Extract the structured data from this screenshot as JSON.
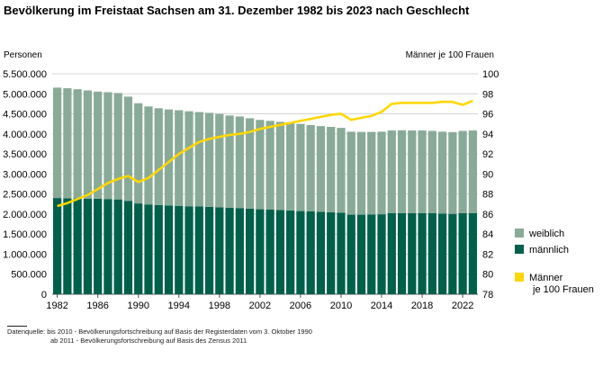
{
  "chart_data": {
    "type": "bar",
    "title": "Bevölkerung im Freistaat Sachsen am 31. Dezember 1982 bis 2023 nach Geschlecht",
    "ylabel_left": "Personen",
    "ylabel_right": "Männer je 100 Frauen",
    "ylim_left": [
      0,
      5500000
    ],
    "ylim_right": [
      78,
      100
    ],
    "yticks_left": [
      "0",
      "500.000",
      "1.000.000",
      "1.500.000",
      "2.000.000",
      "2.500.000",
      "3.000.000",
      "3.500.000",
      "4.000.000",
      "4.500.000",
      "5.000.000",
      "5.500.000"
    ],
    "yticks_right": [
      "78",
      "80",
      "82",
      "84",
      "86",
      "88",
      "90",
      "92",
      "94",
      "96",
      "98",
      "100"
    ],
    "xticks": [
      "1982",
      "1986",
      "1990",
      "1994",
      "1998",
      "2002",
      "2006",
      "2010",
      "2014",
      "2018",
      "2022"
    ],
    "stacked": true,
    "grid": "horizontal",
    "legend_position": "right",
    "categories": [
      1982,
      1983,
      1984,
      1985,
      1986,
      1987,
      1988,
      1989,
      1990,
      1991,
      1992,
      1993,
      1994,
      1995,
      1996,
      1997,
      1998,
      1999,
      2000,
      2001,
      2002,
      2003,
      2004,
      2005,
      2006,
      2007,
      2008,
      2009,
      2010,
      2011,
      2012,
      2013,
      2014,
      2015,
      2016,
      2017,
      2018,
      2019,
      2020,
      2021,
      2022,
      2023
    ],
    "series": [
      {
        "name": "männlich",
        "color": "#00604a",
        "axis": "left",
        "values": [
          2400000,
          2395000,
          2390000,
          2385000,
          2380000,
          2375000,
          2365000,
          2330000,
          2265000,
          2240000,
          2225000,
          2215000,
          2205000,
          2195000,
          2190000,
          2180000,
          2170000,
          2160000,
          2150000,
          2135000,
          2120000,
          2110000,
          2100000,
          2090000,
          2075000,
          2065000,
          2055000,
          2045000,
          2035000,
          1985000,
          1985000,
          1990000,
          1995000,
          2020000,
          2025000,
          2025000,
          2025000,
          2020000,
          2010000,
          2005000,
          2020000,
          2025000
        ]
      },
      {
        "name": "weiblich",
        "color": "#8aaa98",
        "axis": "left",
        "values": [
          2755000,
          2745000,
          2725000,
          2700000,
          2675000,
          2665000,
          2655000,
          2600000,
          2500000,
          2445000,
          2415000,
          2395000,
          2385000,
          2370000,
          2355000,
          2345000,
          2330000,
          2300000,
          2285000,
          2255000,
          2230000,
          2215000,
          2200000,
          2185000,
          2175000,
          2155000,
          2140000,
          2130000,
          2115000,
          2070000,
          2065000,
          2060000,
          2060000,
          2065000,
          2065000,
          2060000,
          2060000,
          2055000,
          2045000,
          2040000,
          2055000,
          2060000
        ]
      },
      {
        "name": "Männer je 100 Frauen",
        "color": "#ffd700",
        "type": "line",
        "axis": "right",
        "values": [
          86.8,
          87.1,
          87.5,
          87.9,
          88.5,
          89.1,
          89.5,
          89.8,
          89.2,
          89.6,
          90.4,
          91.2,
          92.0,
          92.6,
          93.2,
          93.5,
          93.7,
          93.9,
          94.0,
          94.2,
          94.5,
          94.7,
          94.9,
          95.1,
          95.3,
          95.5,
          95.7,
          95.9,
          96.0,
          95.4,
          95.6,
          95.8,
          96.2,
          97.0,
          97.1,
          97.1,
          97.1,
          97.1,
          97.2,
          97.2,
          96.9,
          97.3
        ]
      }
    ]
  },
  "legend": [
    {
      "label": "weiblich",
      "color": "#8aaa98",
      "kind": "box"
    },
    {
      "label": "männlich",
      "color": "#00604a",
      "kind": "box"
    },
    {
      "label_line1": "Männer",
      "label_line2": "je 100 Frauen",
      "color": "#ffd700",
      "kind": "box"
    }
  ],
  "source": {
    "line1": "Datenquelle:  bis 2010 - Bevölkerungsfortschreibung  auf Basis der Registerdaten  vom 3. Oktober 1990",
    "line2": "ab 2011 - Bevölkerungsfortschreibung  auf Basis des Zensus 2011"
  }
}
